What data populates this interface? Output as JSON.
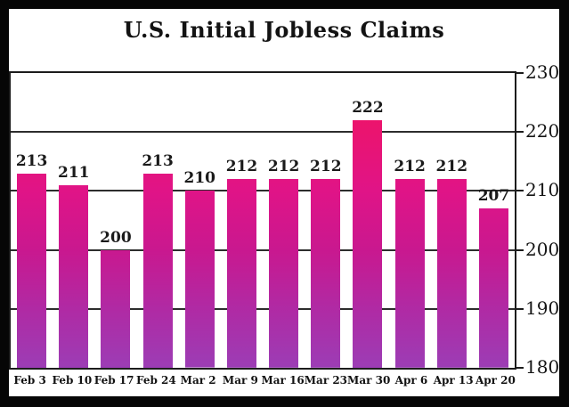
{
  "title": "U.S. Initial Jobless Claims",
  "colors": {
    "frame_bg": "#060606",
    "canvas_bg": "#ffffff",
    "text": "#141414",
    "gridline": "#2d2d2d",
    "bar_gradient_top": "#f3105e",
    "bar_gradient_bottom": "#9c3db5"
  },
  "chart_data": {
    "type": "bar",
    "title": "U.S. Initial Jobless Claims",
    "categories": [
      "Feb 3",
      "Feb 10",
      "Feb 17",
      "Feb 24",
      "Mar 2",
      "Mar 9",
      "Mar 16",
      "Mar 23",
      "Mar 30",
      "Apr 6",
      "Apr 13",
      "Apr 20"
    ],
    "values": [
      213,
      211,
      200,
      213,
      210,
      212,
      212,
      212,
      222,
      212,
      212,
      207
    ],
    "xlabel": "",
    "ylabel": "",
    "ylim": [
      180,
      230
    ],
    "yticks": [
      180,
      190,
      200,
      210,
      220,
      230
    ],
    "ytick_side": "right",
    "grid": "horizontal",
    "legend": "none",
    "data_labels": "above-bars",
    "bar_gradient": [
      [
        "0%",
        "#f3105e"
      ],
      [
        "20%",
        "#ea1470"
      ],
      [
        "40%",
        "#e01487"
      ],
      [
        "60%",
        "#c9188f"
      ],
      [
        "80%",
        "#b02aa4"
      ],
      [
        "100%",
        "#9c3db5"
      ]
    ]
  }
}
